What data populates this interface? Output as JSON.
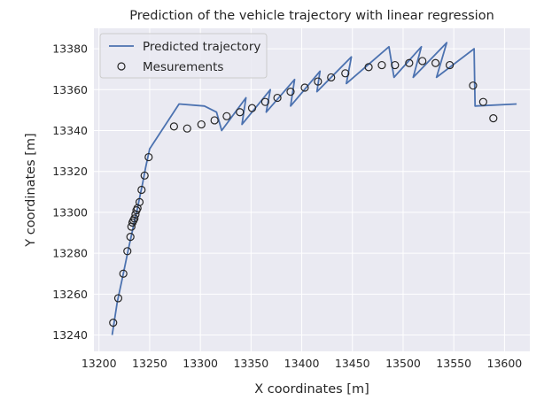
{
  "chart_data": {
    "type": "line",
    "title": "Prediction of the vehicle trajectory with linear regression",
    "xlabel": "X coordinates [m]",
    "ylabel": "Y coordinates [m]",
    "xlim": [
      13195,
      13625
    ],
    "ylim": [
      13232,
      13390
    ],
    "xticks": [
      13200,
      13250,
      13300,
      13350,
      13400,
      13450,
      13500,
      13550,
      13600
    ],
    "yticks": [
      13240,
      13260,
      13280,
      13300,
      13320,
      13340,
      13360,
      13380
    ],
    "grid": true,
    "legend_position": "top-left",
    "series": [
      {
        "name": "Predicted trajectory",
        "kind": "line",
        "color": "#4c72b0",
        "x": [
          13213,
          13218,
          13224,
          13229,
          13233,
          13235,
          13236,
          13237,
          13238,
          13240,
          13243,
          13246,
          13250,
          13279,
          13304,
          13316,
          13321,
          13345,
          13341,
          13369,
          13365,
          13393,
          13389,
          13418,
          13415,
          13449,
          13444,
          13486,
          13491,
          13518,
          13510,
          13543,
          13533,
          13570,
          13571,
          13612
        ],
        "y": [
          13240,
          13256,
          13270,
          13282,
          13291,
          13296,
          13298,
          13300,
          13302,
          13307,
          13314,
          13322,
          13331,
          13353,
          13352,
          13349,
          13340,
          13356,
          13343,
          13360,
          13349,
          13365,
          13352,
          13369,
          13359,
          13376,
          13363,
          13381,
          13366,
          13381,
          13366,
          13383,
          13366,
          13380,
          13352,
          13353
        ]
      },
      {
        "name": "Mesurements",
        "kind": "scatter",
        "color": "#262626",
        "x": [
          13214,
          13219,
          13224,
          13228,
          13231,
          13232,
          13233,
          13234,
          13235,
          13236,
          13237,
          13238,
          13240,
          13242,
          13245,
          13249,
          13274,
          13287,
          13301,
          13314,
          13326,
          13339,
          13351,
          13364,
          13376,
          13389,
          13403,
          13416,
          13429,
          13443,
          13466,
          13479,
          13492,
          13506,
          13519,
          13532,
          13546,
          13569,
          13579,
          13589
        ],
        "y": [
          13246,
          13258,
          13270,
          13281,
          13288,
          13293,
          13295,
          13296,
          13297,
          13299,
          13301,
          13302,
          13305,
          13311,
          13318,
          13327,
          13342,
          13341,
          13343,
          13345,
          13347,
          13349,
          13351,
          13354,
          13356,
          13359,
          13361,
          13364,
          13366,
          13368,
          13371,
          13372,
          13372,
          13373,
          13374,
          13373,
          13372,
          13362,
          13354,
          13346
        ]
      }
    ]
  }
}
